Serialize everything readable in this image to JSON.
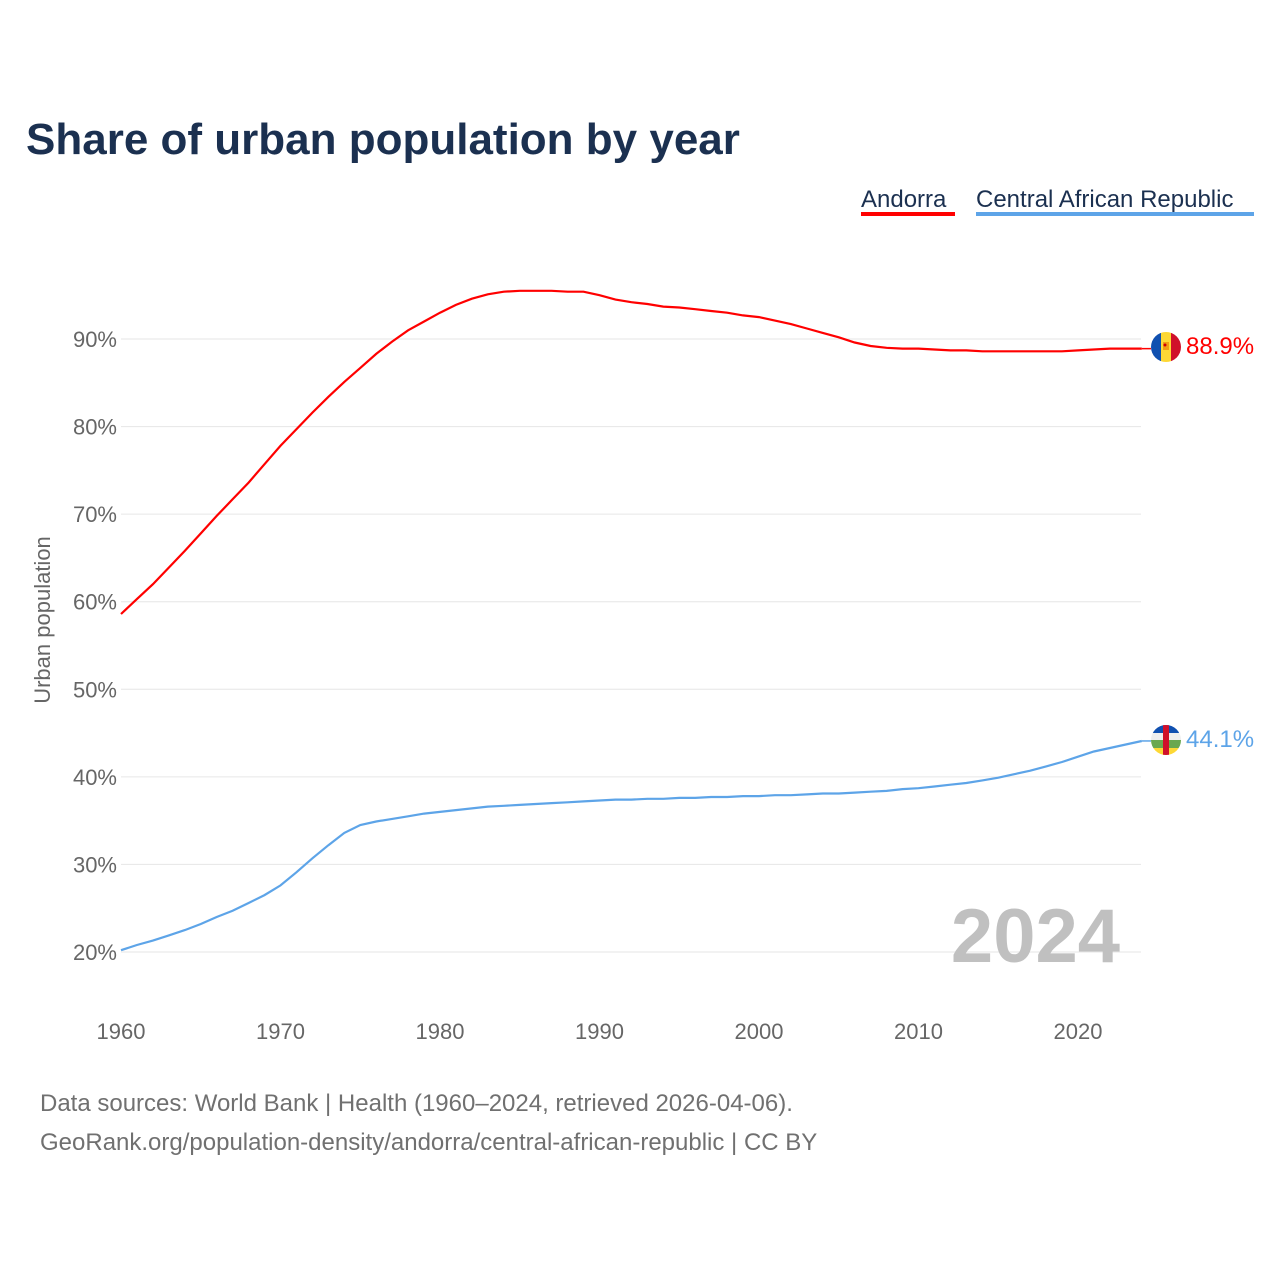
{
  "chart_data": {
    "type": "line",
    "title": "Share of urban population by year",
    "ylabel": "Urban population",
    "xlabel": "",
    "xlim": [
      1960,
      2024
    ],
    "ylim": [
      15,
      97
    ],
    "x_ticks": [
      1960,
      1970,
      1980,
      1990,
      2000,
      2010,
      2020
    ],
    "y_ticks": [
      20,
      30,
      40,
      50,
      60,
      70,
      80,
      90
    ],
    "y_tick_suffix": "%",
    "grid": true,
    "legend_position": "top-right",
    "year_watermark": "2024",
    "x_start": 1960,
    "series": [
      {
        "name": "Andorra",
        "color": "#ff0000",
        "end_label": "88.9%",
        "values": [
          58.6,
          60.3,
          62.0,
          63.9,
          65.8,
          67.8,
          69.8,
          71.7,
          73.6,
          75.7,
          77.8,
          79.7,
          81.6,
          83.4,
          85.1,
          86.7,
          88.3,
          89.7,
          91.0,
          92.0,
          93.0,
          93.9,
          94.6,
          95.1,
          95.4,
          95.5,
          95.5,
          95.5,
          95.4,
          95.4,
          95.0,
          94.5,
          94.2,
          94.0,
          93.7,
          93.6,
          93.4,
          93.2,
          93.0,
          92.7,
          92.5,
          92.1,
          91.7,
          91.2,
          90.7,
          90.2,
          89.6,
          89.2,
          89.0,
          88.9,
          88.9,
          88.8,
          88.7,
          88.7,
          88.6,
          88.6,
          88.6,
          88.6,
          88.6,
          88.6,
          88.7,
          88.8,
          88.9,
          88.9,
          88.9
        ]
      },
      {
        "name": "Central African Republic",
        "color": "#5da4e8",
        "end_label": "44.1%",
        "values": [
          20.2,
          20.8,
          21.3,
          21.9,
          22.5,
          23.2,
          24.0,
          24.7,
          25.6,
          26.5,
          27.6,
          29.1,
          30.7,
          32.2,
          33.6,
          34.5,
          34.9,
          35.2,
          35.5,
          35.8,
          36.0,
          36.2,
          36.4,
          36.6,
          36.7,
          36.8,
          36.9,
          37.0,
          37.1,
          37.2,
          37.3,
          37.4,
          37.4,
          37.5,
          37.5,
          37.6,
          37.6,
          37.7,
          37.7,
          37.8,
          37.8,
          37.9,
          37.9,
          38.0,
          38.1,
          38.1,
          38.2,
          38.3,
          38.4,
          38.6,
          38.7,
          38.9,
          39.1,
          39.3,
          39.6,
          39.9,
          40.3,
          40.7,
          41.2,
          41.7,
          42.3,
          42.9,
          43.3,
          43.7,
          44.1
        ]
      }
    ]
  },
  "footer": {
    "line1": "Data sources: World Bank | Health (1960–2024, retrieved 2026-04-06).",
    "line2": "GeoRank.org/population-density/andorra/central-african-republic | CC BY"
  }
}
